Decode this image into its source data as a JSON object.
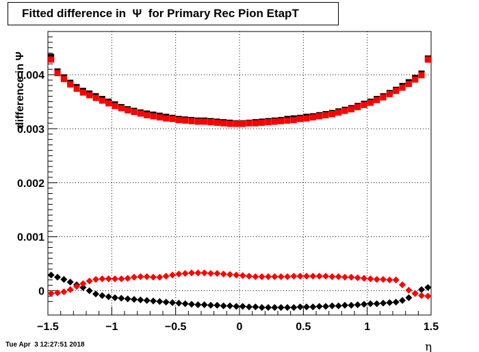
{
  "title": "Fitted difference in  Ψ  for Primary Rec Pion EtapT",
  "datestamp": "Tue Apr  3 12:27:51 2018",
  "chart_data": {
    "type": "scatter",
    "title": "Fitted difference in  Ψ  for Primary Rec Pion EtapT",
    "xlabel": "η",
    "ylabel": "difference in  Ψ",
    "xlim": [
      -1.5,
      1.5
    ],
    "ylim": [
      -0.00045,
      0.0048
    ],
    "grid": true,
    "xticks": [
      -1.5,
      -1,
      -0.5,
      0,
      0.5,
      1,
      1.5
    ],
    "xtick_labels": [
      "−1.5",
      "−1",
      "−0.5",
      "0",
      "0.5",
      "1",
      "1.5"
    ],
    "yticks": [
      0,
      0.001,
      0.002,
      0.003,
      0.004
    ],
    "ytick_labels": [
      "0",
      "0.001",
      "0.002",
      "0.003",
      "0.004"
    ],
    "x": [
      -1.475,
      -1.425,
      -1.375,
      -1.325,
      -1.275,
      -1.225,
      -1.175,
      -1.125,
      -1.075,
      -1.025,
      -0.975,
      -0.925,
      -0.875,
      -0.825,
      -0.775,
      -0.725,
      -0.675,
      -0.625,
      -0.575,
      -0.525,
      -0.475,
      -0.425,
      -0.375,
      -0.325,
      -0.275,
      -0.225,
      -0.175,
      -0.125,
      -0.075,
      -0.025,
      0.025,
      0.075,
      0.125,
      0.175,
      0.225,
      0.275,
      0.325,
      0.375,
      0.425,
      0.475,
      0.525,
      0.575,
      0.625,
      0.675,
      0.725,
      0.775,
      0.825,
      0.875,
      0.925,
      0.975,
      1.025,
      1.075,
      1.125,
      1.175,
      1.225,
      1.275,
      1.325,
      1.375,
      1.425,
      1.475
    ],
    "series": [
      {
        "marker": "square",
        "color": "#000000",
        "values": [
          0.00433,
          0.00406,
          0.00395,
          0.00385,
          0.00377,
          0.0037,
          0.00365,
          0.0036,
          0.00355,
          0.0035,
          0.00345,
          0.0034,
          0.00336,
          0.00333,
          0.0033,
          0.00328,
          0.00326,
          0.00324,
          0.00322,
          0.0032,
          0.00318,
          0.00317,
          0.00316,
          0.00315,
          0.00315,
          0.00314,
          0.00313,
          0.00312,
          0.00311,
          0.0031,
          0.0031,
          0.00311,
          0.00312,
          0.00313,
          0.00314,
          0.00315,
          0.00316,
          0.00318,
          0.00319,
          0.0032,
          0.00322,
          0.00323,
          0.00325,
          0.00327,
          0.00329,
          0.00332,
          0.00335,
          0.00338,
          0.00342,
          0.00346,
          0.0035,
          0.00355,
          0.0036,
          0.00366,
          0.00372,
          0.00379,
          0.00386,
          0.00394,
          0.00402,
          0.0043
        ]
      },
      {
        "marker": "square",
        "color": "#ff0000",
        "values": [
          0.00428,
          0.00403,
          0.00392,
          0.00382,
          0.00374,
          0.00367,
          0.00362,
          0.00357,
          0.00352,
          0.00347,
          0.00342,
          0.00338,
          0.00334,
          0.00331,
          0.00328,
          0.00325,
          0.00323,
          0.00321,
          0.00319,
          0.00318,
          0.00316,
          0.00315,
          0.00314,
          0.00313,
          0.00313,
          0.00312,
          0.00311,
          0.0031,
          0.00309,
          0.00309,
          0.00309,
          0.0031,
          0.0031,
          0.00311,
          0.00312,
          0.00313,
          0.00314,
          0.00315,
          0.00316,
          0.00318,
          0.00319,
          0.00321,
          0.00323,
          0.00325,
          0.00327,
          0.0033,
          0.00333,
          0.00336,
          0.0034,
          0.00344,
          0.00348,
          0.00353,
          0.00358,
          0.00364,
          0.0037,
          0.00376,
          0.00383,
          0.00391,
          0.00399,
          0.00428
        ]
      },
      {
        "marker": "diamond",
        "color": "#000000",
        "values": [
          0.00029,
          0.00025,
          0.00021,
          0.00016,
          0.00011,
          6e-05,
          0.0,
          -6e-05,
          -9e-05,
          -0.00011,
          -0.00013,
          -0.00014,
          -0.00015,
          -0.00016,
          -0.00017,
          -0.00018,
          -0.00019,
          -0.0002,
          -0.00021,
          -0.00022,
          -0.00023,
          -0.00024,
          -0.00025,
          -0.00026,
          -0.00026,
          -0.00027,
          -0.00027,
          -0.00028,
          -0.00028,
          -0.00029,
          -0.00029,
          -0.0003,
          -0.0003,
          -0.00031,
          -0.00031,
          -0.00031,
          -0.00031,
          -0.00031,
          -0.00031,
          -0.0003,
          -0.0003,
          -0.0003,
          -0.00029,
          -0.00029,
          -0.00028,
          -0.00028,
          -0.00027,
          -0.00027,
          -0.00026,
          -0.00025,
          -0.00024,
          -0.00024,
          -0.00023,
          -0.00022,
          -0.00021,
          -0.00018,
          -0.00013,
          -5e-05,
          2e-05,
          6e-05
        ]
      },
      {
        "marker": "diamond",
        "color": "#ff0000",
        "values": [
          -5e-05,
          -4e-05,
          -2e-05,
          2e-05,
          8e-05,
          0.00013,
          0.00018,
          0.00021,
          0.00022,
          0.00022,
          0.00022,
          0.00022,
          0.00023,
          0.00025,
          0.00026,
          0.00026,
          0.00025,
          0.00025,
          0.00027,
          0.00029,
          0.00031,
          0.00032,
          0.00033,
          0.00033,
          0.00033,
          0.00032,
          0.00032,
          0.00031,
          0.0003,
          0.00029,
          0.00028,
          0.00027,
          0.00026,
          0.00026,
          0.00026,
          0.00026,
          0.00026,
          0.00026,
          0.00027,
          0.00027,
          0.00027,
          0.00027,
          0.00027,
          0.00027,
          0.00026,
          0.00026,
          0.00025,
          0.00025,
          0.00024,
          0.00023,
          0.00022,
          0.00021,
          0.00021,
          0.0002,
          0.0002,
          0.00011,
          1e-05,
          -5e-05,
          -9e-05,
          -0.0001
        ]
      }
    ]
  }
}
